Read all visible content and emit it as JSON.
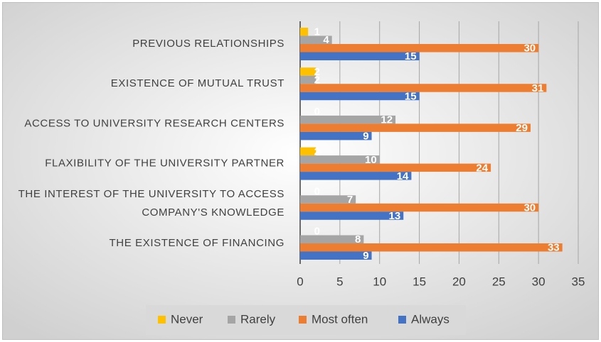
{
  "chart_data": {
    "type": "hbar",
    "categories": [
      "PREVIOUS RELATIONSHIPS",
      "EXISTENCE OF MUTUAL TRUST",
      "ACCESS TO UNIVERSITY RESEARCH CENTERS",
      "FLAXIBILITY OF THE UNIVERSITY PARTNER",
      "THE INTEREST OF THE UNIVERSITY TO ACCESS COMPANY'S KNOWLEDGE",
      "THE EXISTENCE OF FINANCING"
    ],
    "series": [
      {
        "name": "Never",
        "color": "#ffc000",
        "values": [
          1,
          2,
          0,
          2,
          0,
          0
        ]
      },
      {
        "name": "Rarely",
        "color": "#a5a5a5",
        "values": [
          4,
          2,
          12,
          10,
          7,
          8
        ]
      },
      {
        "name": "Most often",
        "color": "#ed7d31",
        "values": [
          30,
          31,
          29,
          24,
          30,
          33
        ]
      },
      {
        "name": "Always",
        "color": "#4472c4",
        "values": [
          15,
          15,
          9,
          14,
          13,
          9
        ]
      }
    ],
    "xlim": [
      0,
      35
    ],
    "xticks": [
      0,
      5,
      10,
      15,
      20,
      25,
      30,
      35
    ],
    "grid": true,
    "legend": "bottom"
  }
}
